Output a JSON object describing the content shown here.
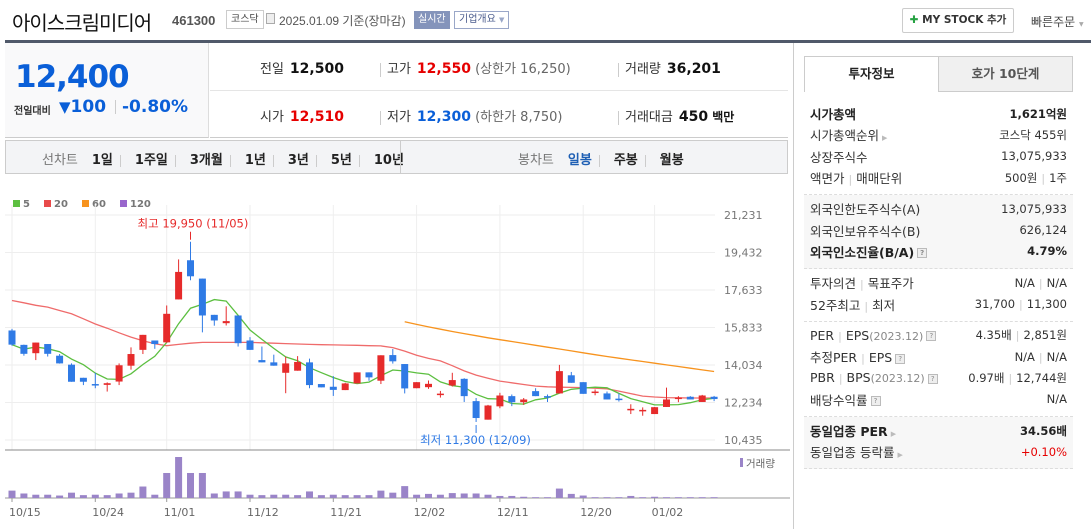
{
  "header": {
    "company_name": "아이스크림미디어",
    "stock_code": "461300",
    "market": "코스닥",
    "as_of": "2025.01.09 기준(장마감)",
    "realtime_label": "실시간",
    "overview_label": "기업개요",
    "mystock_label": "MY STOCK 추가",
    "quick_order_label": "빠른주문"
  },
  "price": {
    "current": "12,400",
    "change_label": "전일대비",
    "change": "100",
    "change_direction": "down",
    "change_pct": "-0.80%"
  },
  "quote": {
    "prev_close": {
      "label": "전일",
      "value": "12,500"
    },
    "high": {
      "label": "고가",
      "value": "12,550",
      "limit_label": "(상한가 16,250)"
    },
    "volume": {
      "label": "거래량",
      "value": "36,201"
    },
    "open": {
      "label": "시가",
      "value": "12,510"
    },
    "low": {
      "label": "저가",
      "value": "12,300",
      "limit_label": "(하한가 8,750)"
    },
    "amount": {
      "label": "거래대금",
      "value": "450",
      "unit": "백만"
    }
  },
  "periods": {
    "line_label": "선차트",
    "line_options": [
      "1일",
      "1주일",
      "3개월",
      "1년",
      "3년",
      "5년",
      "10년"
    ],
    "candle_label": "봉차트",
    "candle_options": [
      "일봉",
      "주봉",
      "월봉"
    ],
    "selected": "일봉"
  },
  "colors": {
    "up": "#e62b2b",
    "down": "#2f7ae5",
    "ma5": "#5cbf40",
    "ma20": "#ef6b6b",
    "ma60": "#f7931e",
    "ma120": "#9966cc",
    "volume": "#9a84c8"
  },
  "chart_data": {
    "type": "candlestick",
    "legend": [
      {
        "name": "5",
        "color": "#5cbf40"
      },
      {
        "name": "20",
        "color": "#e84a4a"
      },
      {
        "name": "60",
        "color": "#f7931e"
      },
      {
        "name": "120",
        "color": "#9966cc"
      }
    ],
    "volume_label": "거래량",
    "ylim": [
      10435,
      21231
    ],
    "y_ticks": [
      "21,231",
      "19,432",
      "17,633",
      "15,833",
      "14,034",
      "12,234",
      "10,435"
    ],
    "x_ticks": [
      {
        "index": 0,
        "label": "10/15"
      },
      {
        "index": 7,
        "label": "10/24"
      },
      {
        "index": 13,
        "label": "11/01"
      },
      {
        "index": 20,
        "label": "11/12"
      },
      {
        "index": 27,
        "label": "11/21"
      },
      {
        "index": 34,
        "label": "12/02"
      },
      {
        "index": 41,
        "label": "12/11"
      },
      {
        "index": 48,
        "label": "12/20"
      },
      {
        "index": 54,
        "label": "01/02"
      }
    ],
    "annotations": [
      {
        "index": 15,
        "text": "최고 19,950 (11/05)",
        "value": 19950,
        "kind": "high"
      },
      {
        "index": 39,
        "text": "최저 11,300 (12/09)",
        "value": 11300,
        "kind": "low"
      }
    ],
    "ohlc": [
      [
        15690,
        15770,
        14960,
        15010
      ],
      [
        15000,
        15010,
        14480,
        14570
      ],
      [
        14600,
        15110,
        14270,
        15110
      ],
      [
        15040,
        15040,
        14440,
        14570
      ],
      [
        14480,
        14560,
        14100,
        14110
      ],
      [
        14050,
        14110,
        13230,
        13230
      ],
      [
        13420,
        13420,
        13070,
        13230
      ],
      [
        13120,
        13660,
        12920,
        13080
      ],
      [
        13080,
        13200,
        12760,
        13160
      ],
      [
        13240,
        14110,
        13070,
        14020
      ],
      [
        14000,
        14880,
        13810,
        14560
      ],
      [
        14760,
        15480,
        14560,
        15480
      ],
      [
        15210,
        15210,
        14810,
        15040
      ],
      [
        15120,
        16890,
        15100,
        16490
      ],
      [
        17180,
        19100,
        17180,
        18500
      ],
      [
        19060,
        19950,
        18100,
        18290
      ],
      [
        18180,
        18180,
        15600,
        16410
      ],
      [
        16440,
        16440,
        15920,
        16170
      ],
      [
        16040,
        16850,
        15930,
        16140
      ],
      [
        16410,
        16410,
        14920,
        15080
      ],
      [
        15210,
        15370,
        14760,
        14760
      ],
      [
        14270,
        14920,
        14160,
        14160
      ],
      [
        14160,
        14530,
        14000,
        14000
      ],
      [
        13660,
        14430,
        12680,
        14110
      ],
      [
        13760,
        14460,
        13760,
        14180
      ],
      [
        14160,
        14340,
        12920,
        13070
      ],
      [
        13120,
        13120,
        12960,
        12960
      ],
      [
        12990,
        13500,
        12550,
        12840
      ],
      [
        12830,
        13180,
        12830,
        13150
      ],
      [
        13150,
        13680,
        13150,
        13680
      ],
      [
        13680,
        13680,
        13280,
        13440
      ],
      [
        13280,
        14500,
        13120,
        14500
      ],
      [
        14510,
        14800,
        14100,
        14210
      ],
      [
        14080,
        14080,
        12670,
        12910
      ],
      [
        12920,
        13210,
        12920,
        13210
      ],
      [
        12970,
        13290,
        12890,
        13130
      ],
      [
        12600,
        12790,
        12470,
        12660
      ],
      [
        13050,
        13660,
        13000,
        13310
      ],
      [
        13370,
        13400,
        12260,
        12540
      ],
      [
        12300,
        12450,
        11300,
        11490
      ],
      [
        11410,
        12120,
        11410,
        12090
      ],
      [
        12050,
        12700,
        11960,
        12570
      ],
      [
        12540,
        12620,
        12060,
        12250
      ],
      [
        12250,
        12450,
        12120,
        12380
      ],
      [
        12780,
        12920,
        12540,
        12540
      ],
      [
        12540,
        12620,
        12260,
        12510
      ],
      [
        12670,
        14040,
        12670,
        13740
      ],
      [
        13540,
        13700,
        13180,
        13180
      ],
      [
        13210,
        13210,
        12650,
        12650
      ],
      [
        12700,
        12860,
        12580,
        12760
      ],
      [
        12670,
        12760,
        12380,
        12380
      ],
      [
        12420,
        12670,
        12280,
        12390
      ],
      [
        11880,
        12150,
        11680,
        11930
      ],
      [
        11830,
        12000,
        11600,
        11880
      ],
      [
        11680,
        12020,
        11680,
        12010
      ],
      [
        12020,
        12950,
        12020,
        12380
      ],
      [
        12440,
        12540,
        12250,
        12470
      ],
      [
        12510,
        12540,
        12380,
        12380
      ],
      [
        12260,
        12600,
        12260,
        12570
      ],
      [
        12510,
        12550,
        12300,
        12400
      ]
    ],
    "volume_relative": [
      18,
      11,
      8,
      8,
      6,
      13,
      7,
      8,
      7,
      11,
      13,
      28,
      8,
      61,
      100,
      61,
      61,
      11,
      16,
      16,
      8,
      7,
      8,
      8,
      7,
      16,
      7,
      8,
      7,
      7,
      7,
      18,
      13,
      29,
      8,
      10,
      8,
      12,
      11,
      11,
      8,
      5,
      5,
      3,
      2,
      2,
      23,
      10,
      6,
      2,
      2,
      2,
      5,
      2,
      3,
      2,
      2,
      2,
      2,
      2
    ],
    "ma20": [
      17130,
      17020,
      16900,
      16810,
      16650,
      16490,
      16250,
      16000,
      15800,
      15580,
      15370,
      15200,
      15050,
      14960,
      15020,
      15080,
      15120,
      15120,
      15120,
      15120,
      15120,
      15100,
      15080,
      15060,
      15040,
      15020,
      15010,
      15000,
      14990,
      14980,
      14960,
      14950,
      14870,
      14700,
      14500,
      14350,
      14230,
      14000,
      13750,
      13550,
      13400,
      13260,
      13180,
      13100,
      13020,
      12990,
      12970,
      12960,
      12950,
      12920,
      12890,
      12780,
      12660,
      12540,
      12500,
      12470,
      12460,
      12450,
      12450,
      12450
    ],
    "ma60": [
      null,
      null,
      null,
      null,
      null,
      null,
      null,
      null,
      null,
      null,
      null,
      null,
      null,
      null,
      null,
      null,
      null,
      null,
      null,
      null,
      null,
      null,
      null,
      null,
      null,
      null,
      null,
      null,
      null,
      null,
      null,
      null,
      null,
      16110,
      15980,
      15860,
      15750,
      15640,
      15540,
      15440,
      15340,
      15250,
      15160,
      15070,
      14980,
      14890,
      14800,
      14710,
      14620,
      14530,
      14440,
      14360,
      14280,
      14200,
      14120,
      14040,
      13960,
      13880,
      13800,
      13720
    ]
  },
  "invest_info": {
    "tabs": [
      "투자정보",
      "호가 10단계"
    ],
    "sections": [
      {
        "shade": false,
        "rows": [
          {
            "label": [
              "시가총액"
            ],
            "value": [
              "1,621억원"
            ],
            "bold": true
          },
          {
            "label": [
              "시가총액순위"
            ],
            "arrow": true,
            "value": [
              "코스닥 455위"
            ]
          },
          {
            "label": [
              "상장주식수"
            ],
            "value": [
              "13,075,933"
            ]
          },
          {
            "label": [
              "액면가",
              "매매단위"
            ],
            "value": [
              "500원",
              "1주"
            ]
          }
        ]
      },
      {
        "shade": true,
        "rows": [
          {
            "label": [
              "외국인한도주식수(A)"
            ],
            "value": [
              "13,075,933"
            ]
          },
          {
            "label": [
              "외국인보유주식수(B)"
            ],
            "value": [
              "626,124"
            ]
          },
          {
            "label": [
              "외국인소진율(B/A)"
            ],
            "help": true,
            "value": [
              "4.79%"
            ],
            "bold": true
          }
        ]
      },
      {
        "shade": false,
        "rows": [
          {
            "label": [
              "투자의견",
              "목표주가"
            ],
            "value": [
              "N/A",
              "N/A"
            ]
          },
          {
            "label": [
              "52주최고",
              "최저"
            ],
            "value": [
              "31,700",
              "11,300"
            ]
          }
        ]
      },
      {
        "shade": false,
        "rows": [
          {
            "label": [
              "PER",
              "EPS"
            ],
            "sub": "(2023.12)",
            "help": true,
            "value": [
              "4.35배",
              "2,851원"
            ]
          },
          {
            "label": [
              "추정PER",
              "EPS"
            ],
            "help": true,
            "value": [
              "N/A",
              "N/A"
            ]
          },
          {
            "label": [
              "PBR",
              "BPS"
            ],
            "sub": "(2023.12)",
            "help": true,
            "value": [
              "0.97배",
              "12,744원"
            ]
          },
          {
            "label": [
              "배당수익률"
            ],
            "help": true,
            "value": [
              "N/A"
            ]
          }
        ]
      },
      {
        "shade": true,
        "rows": [
          {
            "label": [
              "동일업종 PER"
            ],
            "arrow": true,
            "value": [
              "34.56배"
            ],
            "bold": true
          },
          {
            "label": [
              "동일업종 등락률"
            ],
            "arrow": true,
            "value": [
              "+0.10%"
            ],
            "color": "#e60000"
          }
        ]
      }
    ]
  }
}
